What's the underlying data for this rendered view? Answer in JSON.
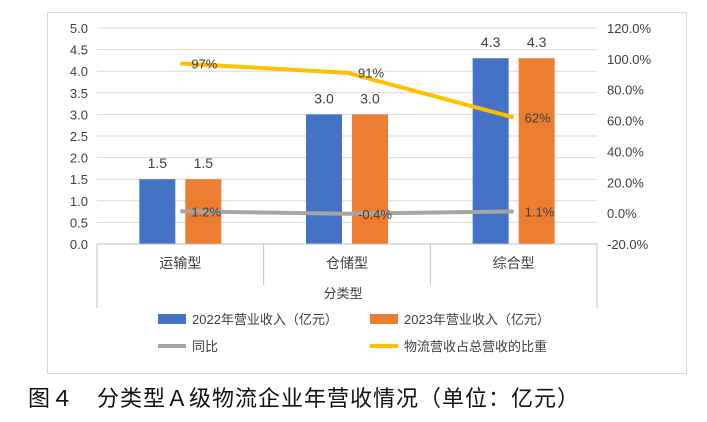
{
  "chart_data": {
    "type": "bar",
    "categories": [
      "运输型",
      "仓储型",
      "综合型"
    ],
    "xlabel": "分类型",
    "y_left_range": [
      0.0,
      5.0
    ],
    "y_left_ticks": [
      "0.0",
      "0.5",
      "1.0",
      "1.5",
      "2.0",
      "2.5",
      "3.0",
      "3.5",
      "4.0",
      "4.5",
      "5.0"
    ],
    "y_right_range": [
      -20,
      120
    ],
    "y_right_ticks": [
      "-20.0%",
      "0.0%",
      "20.0%",
      "40.0%",
      "60.0%",
      "80.0%",
      "100.0%",
      "120.0%"
    ],
    "grid": true,
    "legend_position": "bottom",
    "series": [
      {
        "name": "2022年营业收入（亿元）",
        "kind": "bar",
        "axis": "left",
        "color": "#4472C4",
        "values": [
          1.5,
          3.0,
          4.3
        ],
        "labels": [
          "1.5",
          "3.0",
          "4.3"
        ]
      },
      {
        "name": "2023年营业收入（亿元）",
        "kind": "bar",
        "axis": "left",
        "color": "#ED7D31",
        "values": [
          1.5,
          3.0,
          4.3
        ],
        "labels": [
          "1.5",
          "3.0",
          "4.3"
        ]
      },
      {
        "name": "同比",
        "kind": "line",
        "axis": "right",
        "color": "#A5A5A5",
        "values": [
          1.2,
          -0.4,
          1.1
        ],
        "labels": [
          "1.2%",
          "-0.4%",
          "1.1%"
        ]
      },
      {
        "name": "物流营收占总营收的比重",
        "kind": "line",
        "axis": "right",
        "color": "#FFC000",
        "values": [
          97,
          91,
          62
        ],
        "labels": [
          "97%",
          "91%",
          "62%"
        ]
      }
    ]
  },
  "caption": "图４　分类型Ａ级物流企业年营收情况（单位：亿元）"
}
